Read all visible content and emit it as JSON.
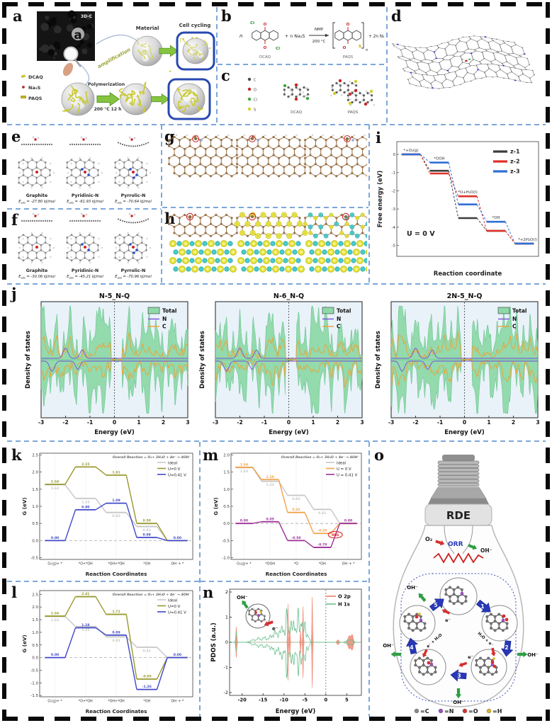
{
  "figure": {
    "background": "#ffffff",
    "outer_border_color": "#0a0a0a",
    "panel_divider_color": "#7da7d9"
  },
  "panels": {
    "a": {
      "label": "a",
      "tem_tag": "3D-C",
      "tem_letter": "a",
      "amplification": "amplification",
      "material": "Material",
      "cell_cycling": "Cell cycling",
      "legend": [
        {
          "name": "DCAQ",
          "color": "#c9c23a"
        },
        {
          "name": "Na₂S",
          "color": "#b03028"
        },
        {
          "name": "PAQS",
          "color": "#b7ab25"
        }
      ],
      "polymerization": "Polymerization",
      "conditions": "200 °C  12 h"
    },
    "b": {
      "label": "b",
      "n_prefix": "n",
      "plus_na2s": "+  n Na₂S",
      "arrow_top": "NMP",
      "arrow_bottom": "200 °C",
      "plus_nacl": "+  2n NaCl",
      "reactant_name": "DCAQ",
      "product_name": "PAQS",
      "atom_cl": "Cl",
      "atom_o": "O",
      "atom_s": "S",
      "bracket_n": "n"
    },
    "c": {
      "label": "c",
      "legend": [
        {
          "name": "C",
          "color": "#4a4a4a"
        },
        {
          "name": "O",
          "color": "#cc2222"
        },
        {
          "name": "Cl",
          "color": "#3aaa3a"
        },
        {
          "name": "S",
          "color": "#d6ce2a"
        }
      ],
      "left_name": "DCAQ",
      "right_name": "PAQS"
    },
    "d": {
      "label": "d"
    },
    "e": {
      "label": "e",
      "items": [
        {
          "name": "Graphite",
          "e_sym": "E",
          "e_sub": "ads",
          "e_val": "= -27.80 kJ/mol"
        },
        {
          "name": "Pyridinic-N",
          "e_sym": "E",
          "e_sub": "ads",
          "e_val": "= -61.93 kJ/mol"
        },
        {
          "name": "Pyrrolic-N",
          "e_sym": "E",
          "e_sub": "ads",
          "e_val": "= -70.64 kJ/mol"
        }
      ]
    },
    "f": {
      "label": "f",
      "items": [
        {
          "name": "Graphite",
          "e_sym": "E",
          "e_sub": "ads",
          "e_val": "= -30.06 kJ/mol"
        },
        {
          "name": "Pyridinic-N",
          "e_sym": "E",
          "e_sub": "ads",
          "e_val": "= -45.21 kJ/mol"
        },
        {
          "name": "Pyrrolic-N",
          "e_sym": "E",
          "e_sub": "ads",
          "e_val": "= -70.96 kJ/mol"
        }
      ]
    },
    "g": {
      "label": "g"
    },
    "h": {
      "label": "h"
    },
    "i": {
      "label": "i"
    },
    "j": {
      "label": "j"
    },
    "k": {
      "label": "k"
    },
    "l": {
      "label": "l"
    },
    "m": {
      "label": "m"
    },
    "n": {
      "label": "n"
    },
    "o": {
      "label": "o",
      "rde": "RDE",
      "o2": "O₂",
      "orr": "ORR",
      "oh": "OH⁻",
      "cycle_numbers": [
        "1",
        "2",
        "3",
        "4",
        "5"
      ],
      "arrow_labels": {
        "e": "e⁻",
        "h2o_e": "H₂O + e⁻",
        "e_h2o": "e⁻ + H₂O"
      },
      "legend": [
        {
          "name": "=C",
          "color": "#8a8a8a"
        },
        {
          "name": "=N",
          "color": "#9a4fc0"
        },
        {
          "name": "=O",
          "color": "#d62f2f"
        },
        {
          "name": "=H",
          "color": "#ddb520"
        }
      ]
    }
  },
  "chart_data": [
    {
      "id": "i",
      "type": "line",
      "subtype": "free-energy-steps",
      "xlabel": "Reaction coordinate",
      "ylabel": "Free energy (eV)",
      "annotation": "U = 0 V",
      "ylim": [
        -5.6,
        0.7
      ],
      "yticks": [
        0,
        -1,
        -2,
        -3,
        -4,
        -5
      ],
      "ydec": 0,
      "categories": [
        "*+O₂(g)",
        "*OOH",
        "*O+H₂O(l)",
        "*OH",
        "*+2H₂O(l)"
      ],
      "series": [
        {
          "name": "z-1",
          "color": "#3d3d3d",
          "values": [
            0,
            -0.9,
            -3.5,
            -4.2,
            -4.9
          ]
        },
        {
          "name": "z-2",
          "color": "#e03128",
          "values": [
            0,
            -1.05,
            -2.3,
            -4.2,
            -4.9
          ]
        },
        {
          "name": "z-3",
          "color": "#2f6fd6",
          "values": [
            0,
            -0.45,
            -2.75,
            -3.7,
            -4.9
          ]
        }
      ],
      "legend_position": "top-right",
      "grid": false
    },
    {
      "id": "j1",
      "type": "area",
      "subtype": "dos",
      "title": "N-5_N-Q",
      "xlabel": "Energy (eV)",
      "ylabel": "Density of states",
      "xlim": [
        -3,
        3
      ],
      "xticks": [
        -3,
        -2,
        -1,
        0,
        1,
        2,
        3
      ],
      "fermi_line_x": 0,
      "seed": 3,
      "legend": [
        {
          "name": "Total",
          "color": "#8fd9a8"
        },
        {
          "name": "N",
          "color": "#7b4fd8"
        },
        {
          "name": "C",
          "color": "#f0a030"
        }
      ],
      "note": "qualitative spin-up/spin-down DOS; no numeric y labels shown in figure"
    },
    {
      "id": "j2",
      "type": "area",
      "subtype": "dos",
      "title": "N-6_N-Q",
      "xlabel": "Energy (eV)",
      "ylabel": "Density of states",
      "xlim": [
        -3,
        3
      ],
      "xticks": [
        -3,
        -2,
        -1,
        0,
        1,
        2,
        3
      ],
      "fermi_line_x": 0,
      "seed": 7,
      "legend": [
        {
          "name": "Total",
          "color": "#8fd9a8"
        },
        {
          "name": "N",
          "color": "#7b4fd8"
        },
        {
          "name": "C",
          "color": "#f0a030"
        }
      ],
      "note": "qualitative spin-up/spin-down DOS"
    },
    {
      "id": "j3",
      "type": "area",
      "subtype": "dos",
      "title": "2N-5_N-Q",
      "xlabel": "Energy (eV)",
      "ylabel": "Density of states",
      "xlim": [
        -3,
        3
      ],
      "xticks": [
        -3,
        -2,
        -1,
        0,
        1,
        2,
        3
      ],
      "fermi_line_x": 0,
      "seed": 11,
      "legend": [
        {
          "name": "Total",
          "color": "#8fd9a8"
        },
        {
          "name": "N",
          "color": "#7b4fd8"
        },
        {
          "name": "C",
          "color": "#f0a030"
        }
      ],
      "note": "qualitative spin-up/spin-down DOS"
    },
    {
      "id": "k",
      "type": "line",
      "subtype": "free-energy-steps",
      "title": "Overall Reaction = O₂+ 2H₂O + 4e⁻ → 4OH⁻",
      "xlabel": "Reaction Coordinates",
      "ylabel": "G (eV)",
      "ylim": [
        -0.55,
        2.55
      ],
      "yticks": [
        -0.5,
        0,
        0.5,
        1,
        1.5,
        2,
        2.5
      ],
      "ydec": 1,
      "zero_dash": true,
      "grid": true,
      "categories": [
        "O₂(g)+ *",
        "*O+*OH",
        "*OH+*OH",
        "*OH",
        "OH⁻+ *"
      ],
      "series": [
        {
          "name": "Ideal",
          "color": "#c6c6c6",
          "values": [
            1.63,
            1.23,
            0.82,
            0.41,
            0
          ],
          "labels": [
            "1.63",
            "1.23",
            "0.82",
            "0.41",
            ""
          ],
          "below": true
        },
        {
          "name": "U=0 V",
          "color": "#99992e",
          "values": [
            1.64,
            2.15,
            1.91,
            0.5,
            0
          ],
          "labels": [
            "1.64",
            "2.15",
            "1.91",
            "0.50",
            ""
          ]
        },
        {
          "name": "U=0.41 V",
          "color": "#4048c8",
          "values": [
            0,
            0.9,
            1.09,
            0.09,
            0
          ],
          "labels": [
            "0.00",
            "0.90",
            "1.09",
            "0.09",
            "0.00"
          ]
        }
      ]
    },
    {
      "id": "l",
      "type": "line",
      "subtype": "free-energy-steps",
      "title": "Overall Reaction = O₂+ 2H₂O + 4e⁻ → 4OH⁻",
      "xlabel": "Reaction Coordinates",
      "ylabel": "G (eV)",
      "ylim": [
        -1.55,
        2.65
      ],
      "yticks": [
        -1.5,
        -1,
        -0.5,
        0,
        0.5,
        1,
        1.5,
        2,
        2.5
      ],
      "ydec": 1,
      "zero_dash": true,
      "grid": true,
      "categories": [
        "O₂(g)+ *",
        "*O+*OH",
        "*OH+*OH",
        "*OH",
        "OH⁻+ *"
      ],
      "series": [
        {
          "name": "Ideal",
          "color": "#c6c6c6",
          "values": [
            1.63,
            1.23,
            0.82,
            0.41,
            0
          ],
          "labels": [
            "1.63",
            "1.23",
            "0.82",
            "0.41",
            ""
          ],
          "below": true
        },
        {
          "name": "U=0 V",
          "color": "#99992e",
          "values": [
            1.64,
            2.41,
            1.71,
            -0.85,
            0
          ],
          "labels": [
            "1.64",
            "2.41",
            "1.71",
            "-0.85",
            ""
          ]
        },
        {
          "name": "U=0.41 V",
          "color": "#4048c8",
          "values": [
            0,
            1.18,
            0.89,
            -1.26,
            0
          ],
          "labels": [
            "0.00",
            "1.18",
            "0.89",
            "-1.26",
            "0.00"
          ]
        }
      ]
    },
    {
      "id": "m",
      "type": "line",
      "subtype": "free-energy-steps",
      "title": "Overall Reaction = O₂+ 2H₂O + 4e⁻ → 4OH⁻",
      "xlabel": "Reaction Coordinates",
      "ylabel": "G (eV)",
      "ylim": [
        -1.05,
        2.05
      ],
      "yticks": [
        -1,
        -0.5,
        0,
        0.5,
        1,
        1.5,
        2
      ],
      "ydec": 1,
      "zero_dash": true,
      "grid": true,
      "categories": [
        "O₂(g)+ *",
        "*OOH",
        "*O",
        "*OH",
        "OH⁻+ *"
      ],
      "series": [
        {
          "name": "Ideal",
          "color": "#c6c6c6",
          "values": [
            1.63,
            1.23,
            0.82,
            0.41,
            0
          ],
          "labels": [
            "1.63",
            "1.23",
            "0.82",
            "0.41",
            ""
          ],
          "below": true
        },
        {
          "name": "U = 0 V",
          "color": "#f2a24a",
          "values": [
            1.64,
            1.28,
            0.32,
            -0.29,
            0
          ],
          "labels": [
            "1.64",
            "1.28",
            "0.32",
            "-0.29",
            ""
          ]
        },
        {
          "name": "U = 0.41 V",
          "color": "#9c2f96",
          "values": [
            0,
            0.05,
            -0.5,
            -0.7,
            0
          ],
          "labels": [
            "0.00",
            "0.05",
            "-0.50",
            "-0.70",
            "0.00"
          ]
        }
      ],
      "rds": {
        "text": "RDS",
        "color": "#e02020",
        "between": [
          3,
          4
        ],
        "y": -0.33
      }
    },
    {
      "id": "n",
      "type": "area",
      "subtype": "pdos",
      "xlabel": "Energy (eV)",
      "ylabel": "PDOS (a.u.)",
      "xlim": [
        -23,
        8.5
      ],
      "xticks": [
        -20,
        -15,
        -10,
        -5,
        0,
        5
      ],
      "ylim": [
        -2,
        2
      ],
      "yticks": [
        -2,
        -1,
        0,
        1,
        2
      ],
      "fermi_line_x": 0,
      "legend": [
        {
          "name": "O 2p",
          "color": "#f08070"
        },
        {
          "name": "H 1s",
          "color": "#6cc08e"
        }
      ],
      "inset": {
        "oh": "OH⁻",
        "e": "e⁻"
      },
      "o2p_peak_positions_eV": [
        -21.4,
        -9.0,
        -5.5,
        -3.2
      ],
      "h1s_band_range_eV": [
        -18,
        -3
      ],
      "note": "O 2p sharp symmetric peaks; H 1s broad band; dotted Fermi level at 0 eV"
    }
  ]
}
